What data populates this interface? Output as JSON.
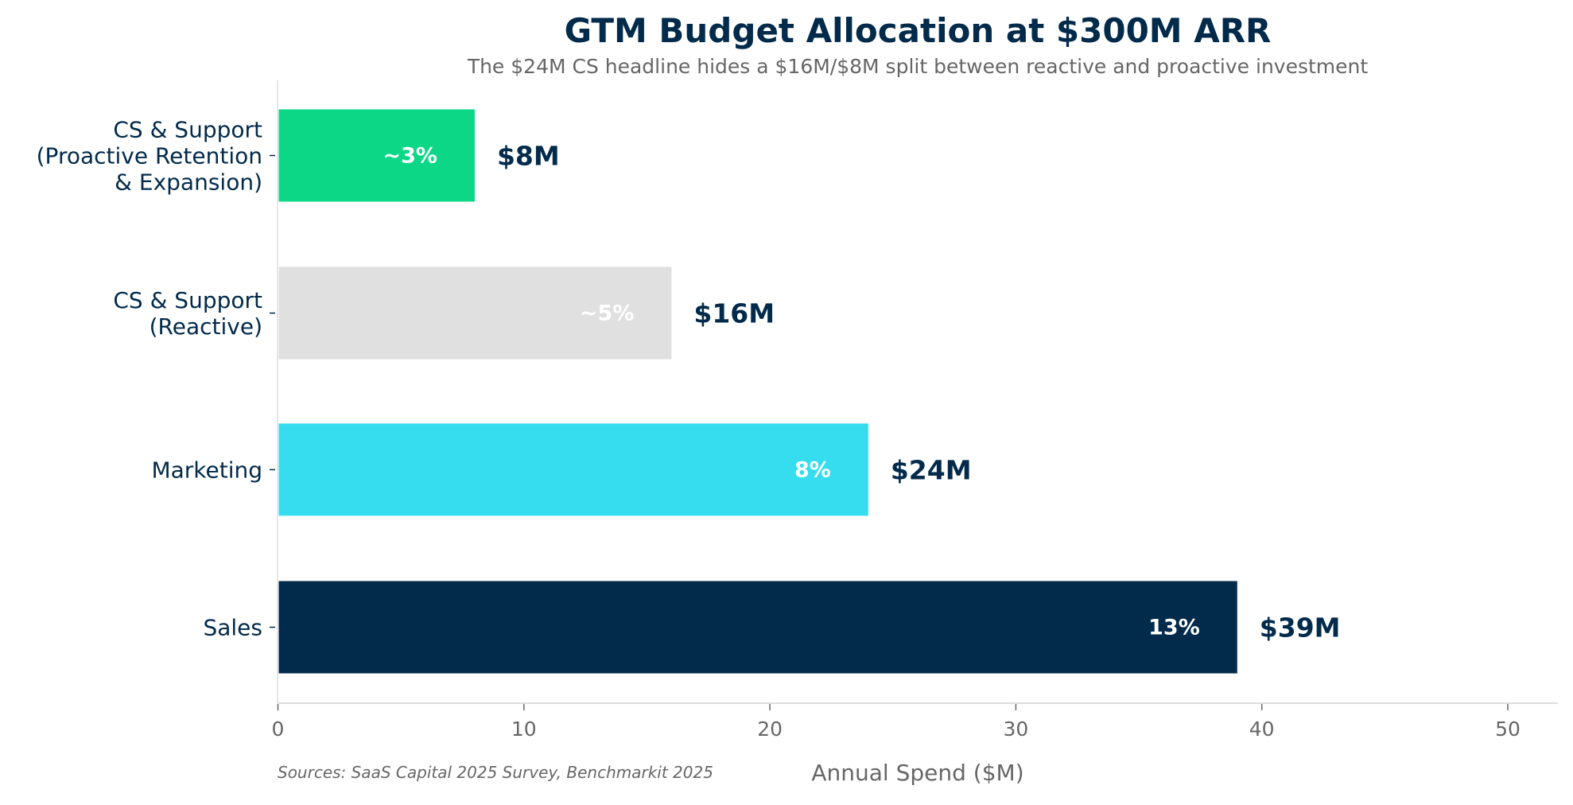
{
  "chart_data": {
    "type": "bar",
    "orientation": "horizontal",
    "title": "GTM Budget Allocation at $300M ARR",
    "subtitle": "The $24M CS headline hides a $16M/$8M split between reactive and proactive investment",
    "xlabel": "Annual Spend ($M)",
    "ylabel": "",
    "source": "Sources: SaaS Capital 2025 Survey, Benchmarkit 2025",
    "xlim": [
      0,
      52
    ],
    "x_ticks": [
      "0",
      "10",
      "20",
      "30",
      "40",
      "50"
    ],
    "grid": false,
    "categories": [
      [
        "Sales"
      ],
      [
        "Marketing"
      ],
      [
        "CS & Support",
        "(Reactive)"
      ],
      [
        "CS & Support",
        "(Proactive Retention",
        "& Expansion)"
      ]
    ],
    "values": [
      39,
      24,
      16,
      8
    ],
    "value_labels": [
      "$39M",
      "$24M",
      "$16M",
      "$8M"
    ],
    "percent_labels": [
      "13%",
      "8%",
      "~5%",
      "~3%"
    ],
    "colors": [
      "#022A4A",
      "#36DDEF",
      "#E0E0E0",
      "#0BD786"
    ],
    "text_color": "#022A4A",
    "muted_color": "#666666"
  }
}
